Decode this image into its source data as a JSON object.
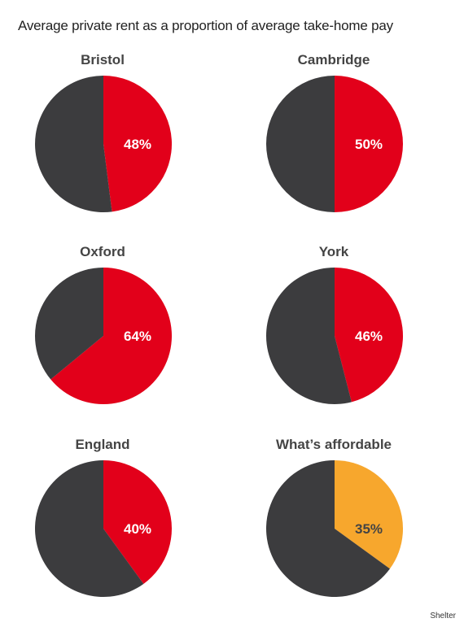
{
  "title": "Average private rent as a proportion of average take-home pay",
  "source": "Shelter",
  "colors": {
    "rent": "#e2001a",
    "rest": "#3c3c3e",
    "affordable": "#f7a72d",
    "label_light": "#ffffff",
    "label_dark": "#444444"
  },
  "chart_data": [
    {
      "type": "pie",
      "title": "Bristol",
      "values": [
        48,
        52
      ],
      "label": "48%"
    },
    {
      "type": "pie",
      "title": "Cambridge",
      "values": [
        50,
        50
      ],
      "label": "50%"
    },
    {
      "type": "pie",
      "title": "Oxford",
      "values": [
        64,
        36
      ],
      "label": "64%"
    },
    {
      "type": "pie",
      "title": "York",
      "values": [
        46,
        54
      ],
      "label": "46%"
    },
    {
      "type": "pie",
      "title": "England",
      "values": [
        40,
        60
      ],
      "label": "40%"
    },
    {
      "type": "pie",
      "title": "What’s affordable",
      "values": [
        35,
        65
      ],
      "label": "35%",
      "highlight": "affordable"
    }
  ]
}
